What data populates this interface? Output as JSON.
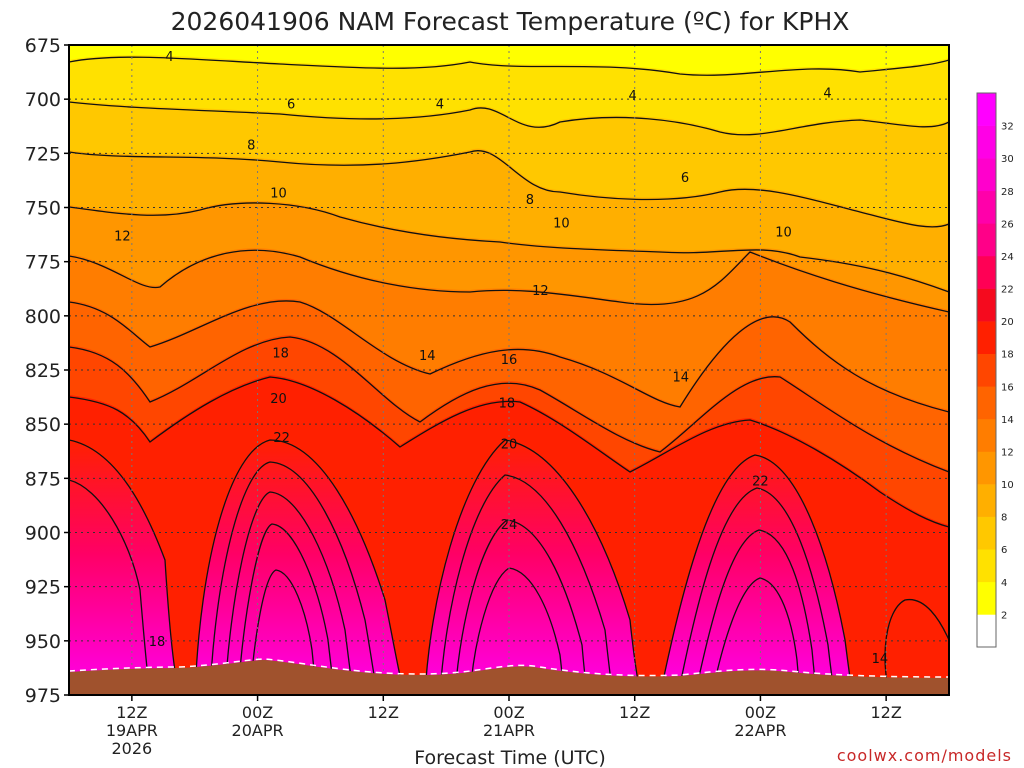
{
  "chart_data": {
    "type": "heatmap",
    "title": "2026041906 NAM Forecast Temperature (ºC) for KPHX",
    "xlabel": "Forecast Time (UTC)",
    "ylabel": "",
    "credit": "coolwx.com/models",
    "x_unit": "hours from 2026-04-19 06Z",
    "xlim": [
      0,
      84
    ],
    "ylim": [
      975,
      675
    ],
    "y_ticks": [
      675,
      700,
      725,
      750,
      775,
      800,
      825,
      850,
      875,
      900,
      925,
      950,
      975
    ],
    "x_ticks": [
      {
        "hour": 6,
        "lines": [
          "12Z",
          "19APR",
          "2026"
        ]
      },
      {
        "hour": 18,
        "lines": [
          "00Z",
          "20APR"
        ]
      },
      {
        "hour": 30,
        "lines": [
          "12Z"
        ]
      },
      {
        "hour": 42,
        "lines": [
          "00Z",
          "21APR"
        ]
      },
      {
        "hour": 54,
        "lines": [
          "12Z"
        ]
      },
      {
        "hour": 66,
        "lines": [
          "00Z",
          "22APR"
        ]
      },
      {
        "hour": 78,
        "lines": [
          "12Z"
        ]
      }
    ],
    "colorbar": {
      "levels": [
        2,
        4,
        6,
        8,
        10,
        12,
        14,
        16,
        18,
        20,
        22,
        24,
        26,
        28,
        30,
        32
      ],
      "colors": [
        "#ffffff",
        "#ffff00",
        "#ffe100",
        "#ffc800",
        "#ffaf00",
        "#ff9600",
        "#ff7d00",
        "#ff6400",
        "#ff4600",
        "#ff2000",
        "#f50a1e",
        "#ff0055",
        "#ff0088",
        "#ff00aa",
        "#ff00cc",
        "#ff00e6",
        "#ff00ff"
      ]
    },
    "contour_labels": [
      {
        "hour": 9.6,
        "pressure": 680,
        "text": "4"
      },
      {
        "hour": 21.2,
        "pressure": 702,
        "text": "6"
      },
      {
        "hour": 17.4,
        "pressure": 721,
        "text": "8"
      },
      {
        "hour": 20.0,
        "pressure": 743,
        "text": "10"
      },
      {
        "hour": 5.1,
        "pressure": 763,
        "text": "12"
      },
      {
        "hour": 35.4,
        "pressure": 702,
        "text": "4"
      },
      {
        "hour": 44.0,
        "pressure": 746,
        "text": "8"
      },
      {
        "hour": 47.0,
        "pressure": 757,
        "text": "10"
      },
      {
        "hour": 45.0,
        "pressure": 788,
        "text": "12"
      },
      {
        "hour": 34.2,
        "pressure": 818,
        "text": "14"
      },
      {
        "hour": 42.0,
        "pressure": 820,
        "text": "16"
      },
      {
        "hour": 41.8,
        "pressure": 840,
        "text": "18"
      },
      {
        "hour": 42.0,
        "pressure": 859,
        "text": "20"
      },
      {
        "hour": 42.0,
        "pressure": 896,
        "text": "24"
      },
      {
        "hour": 20.2,
        "pressure": 817,
        "text": "18"
      },
      {
        "hour": 20.0,
        "pressure": 838,
        "text": "20"
      },
      {
        "hour": 20.3,
        "pressure": 856,
        "text": "22"
      },
      {
        "hour": 53.8,
        "pressure": 698,
        "text": "4"
      },
      {
        "hour": 58.8,
        "pressure": 736,
        "text": "6"
      },
      {
        "hour": 72.4,
        "pressure": 697,
        "text": "4"
      },
      {
        "hour": 68.2,
        "pressure": 761,
        "text": "10"
      },
      {
        "hour": 58.4,
        "pressure": 828,
        "text": "14"
      },
      {
        "hour": 66.0,
        "pressure": 876,
        "text": "22"
      },
      {
        "hour": 8.4,
        "pressure": 950,
        "text": "18"
      },
      {
        "hour": 77.4,
        "pressure": 958,
        "text": "14"
      }
    ]
  }
}
